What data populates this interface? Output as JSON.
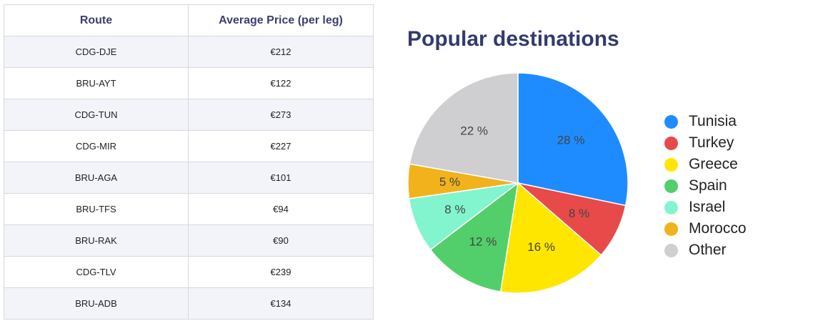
{
  "table": {
    "headers": [
      "Route",
      "Average Price (per leg)"
    ],
    "rows": [
      [
        "CDG-DJE",
        "€212"
      ],
      [
        "BRU-AYT",
        "€122"
      ],
      [
        "CDG-TUN",
        "€273"
      ],
      [
        "CDG-MIR",
        "€227"
      ],
      [
        "BRU-AGA",
        "€101"
      ],
      [
        "BRU-TFS",
        "€94"
      ],
      [
        "BRU-RAK",
        "€90"
      ],
      [
        "CDG-TLV",
        "€239"
      ],
      [
        "BRU-ADB",
        "€134"
      ]
    ]
  },
  "chart_data": {
    "type": "pie",
    "title": "Popular destinations",
    "legend_position": "right",
    "slices": [
      {
        "label": "Tunisia",
        "value": 28,
        "display": "28 %",
        "color": "#1e8cff"
      },
      {
        "label": "Turkey",
        "value": 8,
        "display": "8 %",
        "color": "#e84a4a"
      },
      {
        "label": "Greece",
        "value": 16,
        "display": "16 %",
        "color": "#ffe600"
      },
      {
        "label": "Spain",
        "value": 12,
        "display": "12 %",
        "color": "#52cf6a"
      },
      {
        "label": "Israel",
        "value": 8,
        "display": "8 %",
        "color": "#82f5cf"
      },
      {
        "label": "Morocco",
        "value": 5,
        "display": "5 %",
        "color": "#f2b21c"
      },
      {
        "label": "Other",
        "value": 22,
        "display": "22 %",
        "color": "#cfcfd1"
      }
    ]
  }
}
